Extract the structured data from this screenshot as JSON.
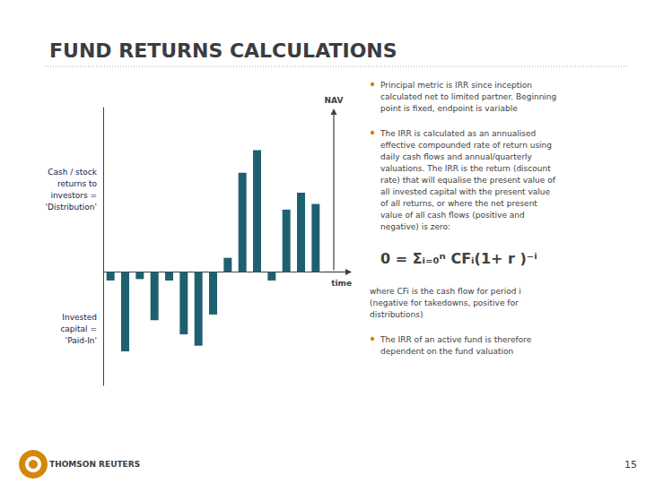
{
  "chart_data": {
    "type": "bar",
    "title": "FUND RETURNS CALCULATIONS",
    "categories": [
      null,
      null,
      null,
      null,
      null,
      null,
      null,
      null,
      null,
      null,
      null,
      null,
      null,
      null,
      null
    ],
    "values": [
      -0.3,
      -2.8,
      -0.25,
      -1.7,
      -0.3,
      -2.2,
      -2.6,
      -1.5,
      0.5,
      3.5,
      4.3,
      -0.3,
      2.2,
      2.8,
      2.4
    ],
    "color": "#1F6070",
    "ylim": [
      -4.0,
      5.8
    ],
    "tick_labels": false,
    "grid": false,
    "xlabel": "time",
    "ylabel": "NAV",
    "annotations": [
      "Cash / stock\nreturns to\ninvestors =\n'Distribution'",
      "Invested\ncapital =\n'Paid-In'",
      "Principal metric is IRR since inception\ncalculated net to limited partner. Beginning\npoint is fixed, endpoint is variable",
      "The IRR is calculated as an annualised\neffective compounded rate of return using\ndaily cash flows and annual/quarterly\nvaluations. The IRR is the return (discount\nrate) that will equalise the present value of\nall invested capital with the present value\nof all returns, or where the net present\nvalue of all cash flows (positive and\nnegative) is zero:",
      "0 = Σᵢ₌₀ⁿ CFᵢ(1+ r )⁻ⁱ",
      "where CFi is the cash flow for period i\n(negative for takedowns, positive for\ndistributions)",
      "The IRR of an active fund is therefore\ndependent on the fund valuation",
      "THOMSON REUTERS",
      "15"
    ]
  }
}
